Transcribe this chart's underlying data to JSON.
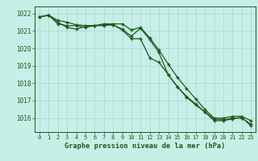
{
  "title": "Graphe pression niveau de la mer (hPa)",
  "background_color": "#c8eee8",
  "grid_color": "#a8d8cc",
  "line_color": "#1a5c1a",
  "text_color": "#1a5c1a",
  "xlim": [
    -0.5,
    23.5
  ],
  "ylim": [
    1015.2,
    1022.4
  ],
  "yticks": [
    1016,
    1017,
    1018,
    1019,
    1020,
    1021,
    1022
  ],
  "xticks": [
    0,
    1,
    2,
    3,
    4,
    5,
    6,
    7,
    8,
    9,
    10,
    11,
    12,
    13,
    14,
    15,
    16,
    17,
    18,
    19,
    20,
    21,
    22,
    23
  ],
  "hours": [
    0,
    1,
    2,
    3,
    4,
    5,
    6,
    7,
    8,
    9,
    10,
    11,
    12,
    13,
    14,
    15,
    16,
    17,
    18,
    19,
    20,
    21,
    22,
    23
  ],
  "series_top": [
    1021.8,
    1021.9,
    1021.6,
    1021.5,
    1021.35,
    1021.3,
    1021.3,
    1021.4,
    1021.4,
    1021.4,
    1021.05,
    1021.2,
    1020.6,
    1019.9,
    1019.1,
    1018.35,
    1017.7,
    1017.1,
    1016.5,
    1016.0,
    1016.0,
    1016.1,
    1016.1,
    1015.85
  ],
  "series_mid": [
    1021.8,
    1021.9,
    1021.5,
    1021.2,
    1021.1,
    1021.25,
    1021.3,
    1021.35,
    1021.35,
    1021.1,
    1020.7,
    1021.15,
    1020.5,
    1019.75,
    1018.5,
    1017.8,
    1017.25,
    1016.8,
    1016.35,
    1015.95,
    1015.9,
    1016.0,
    1016.0,
    1015.65
  ],
  "series_bot": [
    1021.8,
    1021.9,
    1021.4,
    1021.3,
    1021.3,
    1021.2,
    1021.3,
    1021.3,
    1021.35,
    1021.05,
    1020.55,
    1020.55,
    1019.45,
    1019.2,
    1018.5,
    1017.8,
    1017.2,
    1016.75,
    1016.35,
    1015.85,
    1015.85,
    1015.95,
    1016.05,
    1015.55
  ]
}
